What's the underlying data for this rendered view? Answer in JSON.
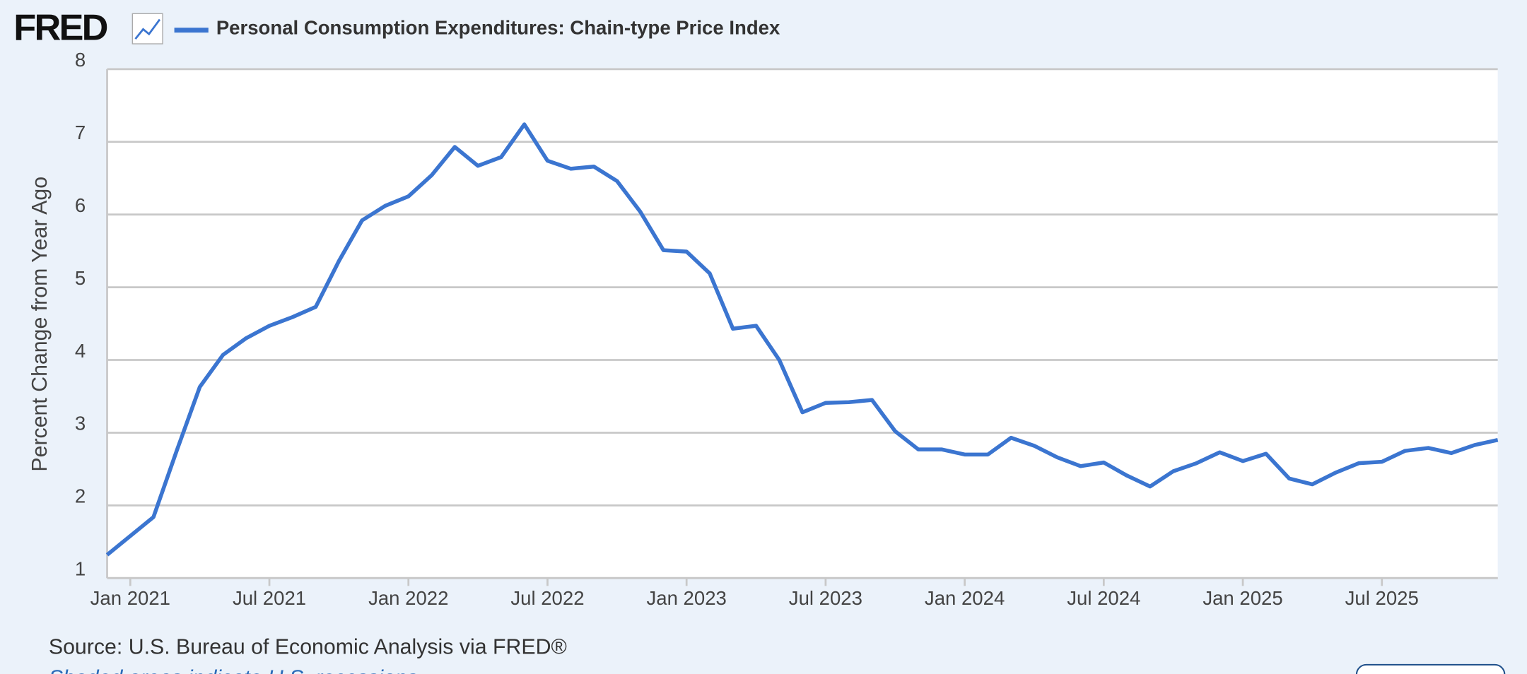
{
  "logo": "FRED",
  "chart_data": {
    "type": "line",
    "title": "Personal Consumption Expenditures: Chain-type Price Index",
    "ylabel": "Percent Change from Year Ago",
    "source": "Source: U.S. Bureau of Economic Analysis via FRED®",
    "note": "Shaded areas indicate U.S. recessions",
    "x": [
      "2020-12",
      "2021-01",
      "2021-02",
      "2021-03",
      "2021-04",
      "2021-05",
      "2021-06",
      "2021-07",
      "2021-08",
      "2021-09",
      "2021-10",
      "2021-11",
      "2021-12",
      "2022-01",
      "2022-02",
      "2022-03",
      "2022-04",
      "2022-05",
      "2022-06",
      "2022-07",
      "2022-08",
      "2022-09",
      "2022-10",
      "2022-11",
      "2022-12",
      "2023-01",
      "2023-02",
      "2023-03",
      "2023-04",
      "2023-05",
      "2023-06",
      "2023-07",
      "2023-08",
      "2023-09",
      "2023-10",
      "2023-11",
      "2023-12",
      "2024-01",
      "2024-02",
      "2024-03",
      "2024-04",
      "2024-05",
      "2024-06",
      "2024-07",
      "2024-08",
      "2024-09",
      "2024-10",
      "2024-11",
      "2024-12",
      "2025-01",
      "2025-02",
      "2025-03",
      "2025-04",
      "2025-05",
      "2025-06",
      "2025-07",
      "2025-08",
      "2025-09",
      "2025-10",
      "2025-11",
      "2025-12"
    ],
    "series": [
      {
        "name": "Personal Consumption Expenditures: Chain-type Price Index",
        "color": "#3b75d0",
        "values": [
          1.32,
          1.58,
          1.84,
          2.75,
          3.63,
          4.07,
          4.3,
          4.47,
          4.59,
          4.73,
          5.36,
          5.92,
          6.12,
          6.25,
          6.54,
          6.93,
          6.67,
          6.79,
          7.24,
          6.74,
          6.63,
          6.66,
          6.46,
          6.04,
          5.51,
          5.49,
          5.19,
          4.43,
          4.47,
          4.0,
          3.28,
          3.41,
          3.42,
          3.45,
          3.02,
          2.77,
          2.77,
          2.7,
          2.7,
          2.93,
          2.82,
          2.66,
          2.54,
          2.59,
          2.41,
          2.26,
          2.47,
          2.58,
          2.73,
          2.61,
          2.71,
          2.37,
          2.29,
          2.45,
          2.58,
          2.6,
          2.75,
          2.79,
          2.72,
          2.83,
          2.9
        ]
      }
    ],
    "xlim": [
      "2020-12",
      "2025-12"
    ],
    "xticks": [
      {
        "value": "2021-01",
        "label": "Jan 2021"
      },
      {
        "value": "2021-07",
        "label": "Jul 2021"
      },
      {
        "value": "2022-01",
        "label": "Jan 2022"
      },
      {
        "value": "2022-07",
        "label": "Jul 2022"
      },
      {
        "value": "2023-01",
        "label": "Jan 2023"
      },
      {
        "value": "2023-07",
        "label": "Jul 2023"
      },
      {
        "value": "2024-01",
        "label": "Jan 2024"
      },
      {
        "value": "2024-07",
        "label": "Jul 2024"
      },
      {
        "value": "2025-01",
        "label": "Jan 2025"
      },
      {
        "value": "2025-07",
        "label": "Jul 2025"
      }
    ],
    "ylim": [
      1,
      8
    ],
    "yticks": [
      1,
      2,
      3,
      4,
      5,
      6,
      7,
      8
    ],
    "grid": true
  }
}
